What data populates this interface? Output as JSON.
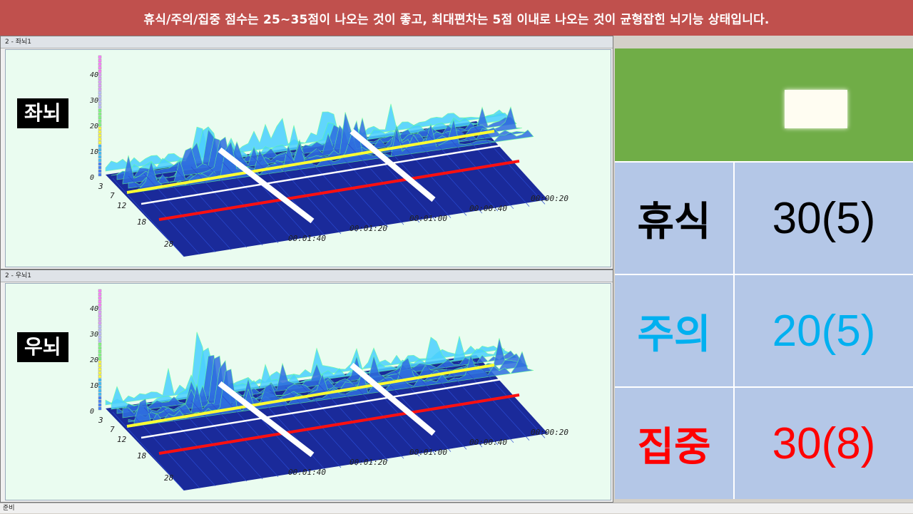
{
  "banner": {
    "text": "휴식/주의/집중 점수는 25~35점이 나오는 것이 좋고, 최대편차는 5점 이내로 나오는 것이 균형잡힌 뇌기능 상태입니다."
  },
  "windows": [
    {
      "title": "2 - 좌뇌1",
      "label": "좌뇌"
    },
    {
      "title": "2 - 우뇌1",
      "label": "우뇌"
    }
  ],
  "plot_axes": {
    "z_ticks": [
      "40",
      "30",
      "20",
      "10",
      "0"
    ],
    "freq_ticks": [
      "3",
      "7",
      "12",
      "18",
      "28"
    ],
    "time_ticks": [
      "00:01:40",
      "00:01:20",
      "00:01:00",
      "00:00:40",
      "00:00:20"
    ]
  },
  "scores": [
    {
      "name": "휴식",
      "value": "30(5)",
      "color": "#000000"
    },
    {
      "name": "주의",
      "value": "20(5)",
      "color": "#00b0f0"
    },
    {
      "name": "집중",
      "value": "30(8)",
      "color": "#ff0000"
    }
  ],
  "status_bar": {
    "text": "준비"
  }
}
